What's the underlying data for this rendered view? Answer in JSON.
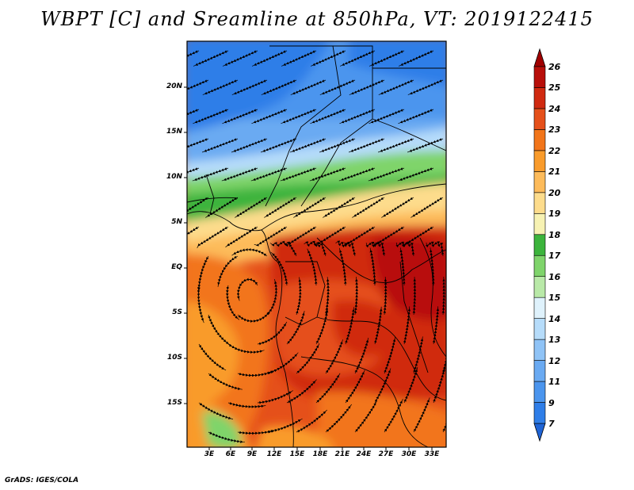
{
  "title": "WBPT [C] and Sreamline at 850hPa, VT: 2019122415",
  "credit": "GrADS: IGES/COLA",
  "map": {
    "lat_labels": [
      "20N",
      "15N",
      "10N",
      "5N",
      "EQ",
      "5S",
      "10S",
      "15S"
    ],
    "lat_values": [
      20,
      15,
      10,
      5,
      0,
      -5,
      -10,
      -15
    ],
    "lon_labels": [
      "3E",
      "6E",
      "9E",
      "12E",
      "15E",
      "18E",
      "21E",
      "24E",
      "27E",
      "30E",
      "33E"
    ],
    "lon_values": [
      3,
      6,
      9,
      12,
      15,
      18,
      21,
      24,
      27,
      30,
      33
    ]
  },
  "colorbar": {
    "levels": [
      "7",
      "9",
      "11",
      "12",
      "13",
      "14",
      "15",
      "16",
      "17",
      "18",
      "19",
      "20",
      "21",
      "22",
      "23",
      "24",
      "25",
      "26"
    ],
    "colors": [
      "#1f64d6",
      "#2f7ee8",
      "#4b95ee",
      "#6aaaf2",
      "#8fc3f6",
      "#b6dcfa",
      "#dff2fc",
      "#b9e9a8",
      "#7fd46b",
      "#3cb43c",
      "#f7f2b3",
      "#fddc8c",
      "#fdbb5a",
      "#f99b2b",
      "#f2751a",
      "#e5501a",
      "#d02a10",
      "#b80f0a",
      "#a00000"
    ]
  }
}
